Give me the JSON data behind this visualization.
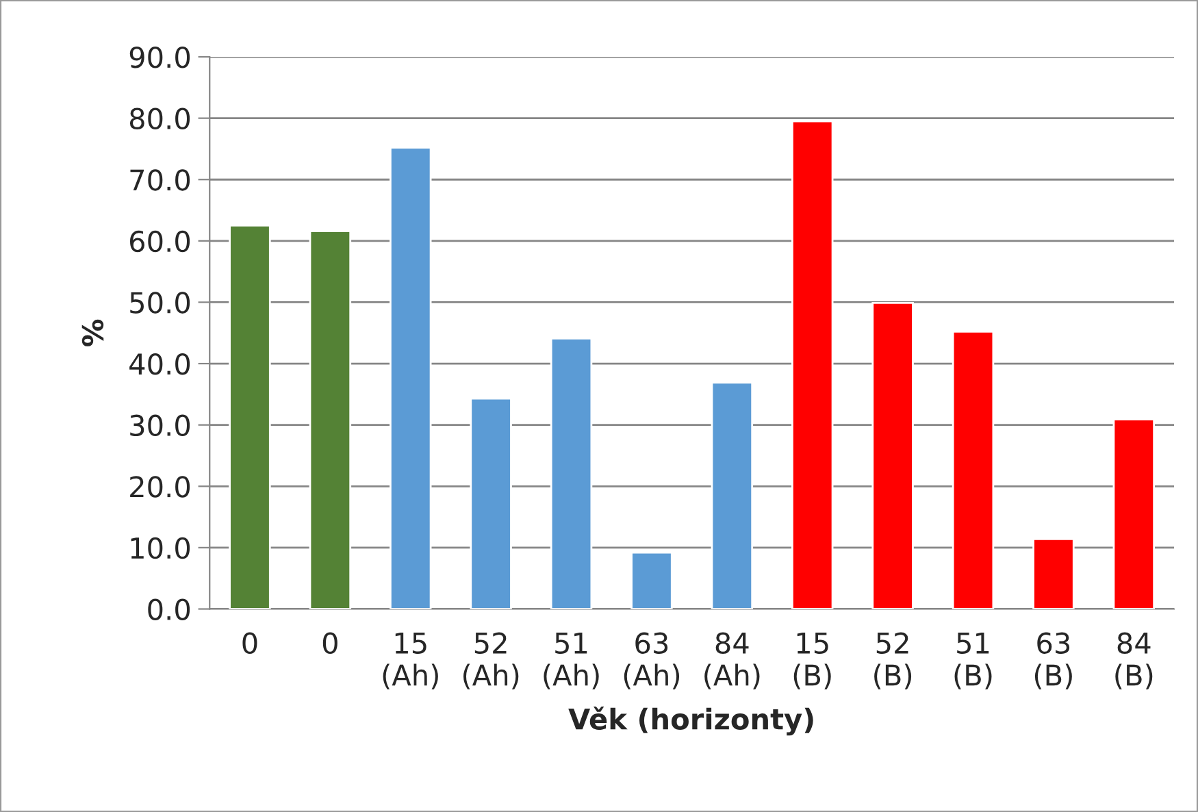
{
  "chart_data": {
    "type": "bar",
    "xlabel": "Věk (horizonty)",
    "ylabel": "%",
    "categories": [
      "0",
      "0",
      "15\n(Ah)",
      "52\n(Ah)",
      "51\n(Ah)",
      "63\n(Ah)",
      "84\n(Ah)",
      "15\n(B)",
      "52\n(B)",
      "51\n(B)",
      "63\n(B)",
      "84\n(B)"
    ],
    "values": [
      62.5,
      61.6,
      75.2,
      34.3,
      44.1,
      9.2,
      36.9,
      79.5,
      49.9,
      45.2,
      11.4,
      30.9
    ],
    "colors": [
      "#548235",
      "#548235",
      "#5b9bd5",
      "#5b9bd5",
      "#5b9bd5",
      "#5b9bd5",
      "#5b9bd5",
      "#ff0000",
      "#ff0000",
      "#ff0000",
      "#ff0000",
      "#ff0000"
    ],
    "ylim": [
      0,
      90
    ],
    "yticks": [
      {
        "value": 0,
        "label": "0.0"
      },
      {
        "value": 10,
        "label": "10.0"
      },
      {
        "value": 20,
        "label": "20.0"
      },
      {
        "value": 30,
        "label": "30.0"
      },
      {
        "value": 40,
        "label": "40.0"
      },
      {
        "value": 50,
        "label": "50.0"
      },
      {
        "value": 60,
        "label": "60.0"
      },
      {
        "value": 70,
        "label": "70.0"
      },
      {
        "value": 80,
        "label": "80.0"
      },
      {
        "value": 90,
        "label": "90.0"
      }
    ],
    "grid": "y"
  }
}
